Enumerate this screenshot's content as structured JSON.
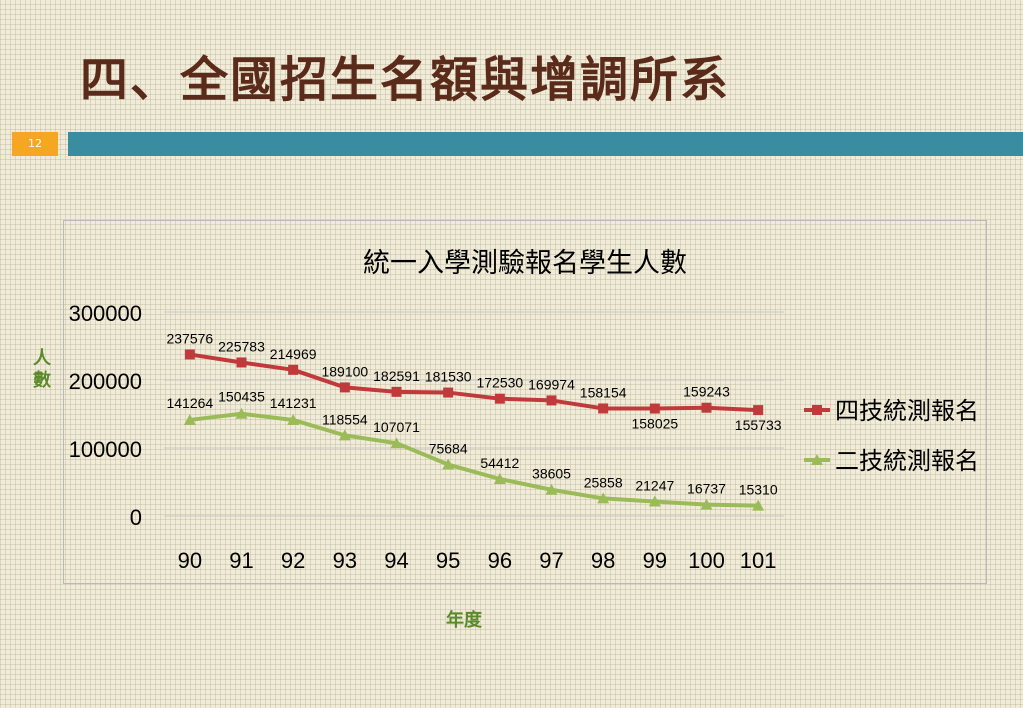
{
  "slide": {
    "title": "四、全國招生名額與增調所系",
    "page_number": "12",
    "side_label": "人數",
    "bottom_label": "年度"
  },
  "colors": {
    "series1": "#c0393b",
    "series2": "#9bbb59",
    "title_bar": "#3a8da0",
    "page_box": "#f5a623",
    "title_text": "#5a2a1a"
  },
  "chart_data": {
    "type": "line",
    "title": "統一入學測驗報名學生人數",
    "categories": [
      "90",
      "91",
      "92",
      "93",
      "94",
      "95",
      "96",
      "97",
      "98",
      "99",
      "100",
      "101"
    ],
    "series": [
      {
        "name": "四技統測報名",
        "values": [
          237576,
          225783,
          214969,
          189100,
          182591,
          181530,
          172530,
          169974,
          158154,
          158025,
          159243,
          155733
        ]
      },
      {
        "name": "二技統測報名",
        "values": [
          141264,
          150435,
          141231,
          118554,
          107071,
          75684,
          54412,
          38605,
          25858,
          21247,
          16737,
          15310
        ]
      }
    ],
    "yticks": [
      "0",
      "100000",
      "200000",
      "300000"
    ],
    "ylim": [
      0,
      300000
    ],
    "grid": true,
    "legend": "right"
  }
}
